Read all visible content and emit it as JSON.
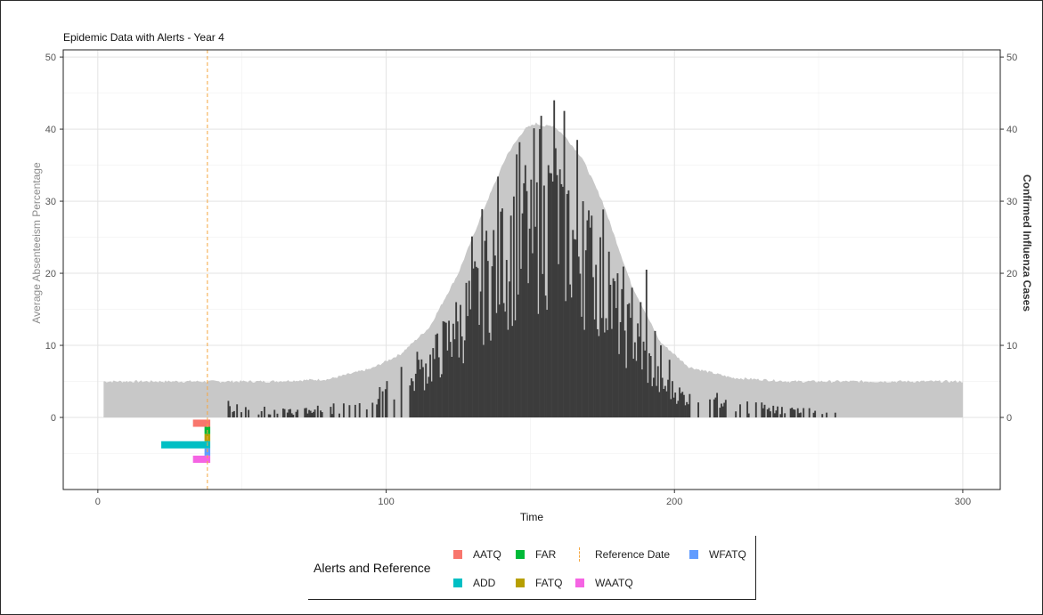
{
  "chart_data": {
    "type": "bar",
    "title": "Epidemic Data with Alerts - Year 4",
    "xlabel": "Time",
    "ylabel": "Average Absenteeism Percentage",
    "y2label": "Confirmed Influenza Cases",
    "xlim": [
      -12,
      313
    ],
    "ylim": [
      -10,
      51
    ],
    "x_ticks": [
      0,
      100,
      200,
      300
    ],
    "y_ticks": [
      0,
      10,
      20,
      30,
      40,
      50
    ],
    "y2_ticks": [
      0,
      10,
      20,
      30,
      40,
      50
    ],
    "grid": true,
    "reference_date": 38,
    "absenteeism": {
      "x_range": [
        2,
        300
      ],
      "profile": [
        [
          2,
          5.0
        ],
        [
          60,
          5.0
        ],
        [
          80,
          5.3
        ],
        [
          95,
          6.8
        ],
        [
          105,
          8.8
        ],
        [
          115,
          12.5
        ],
        [
          125,
          20.0
        ],
        [
          135,
          30.0
        ],
        [
          142,
          36.5
        ],
        [
          148,
          40.0
        ],
        [
          152,
          40.8
        ],
        [
          155,
          40.4
        ],
        [
          158,
          40.5
        ],
        [
          162,
          39.0
        ],
        [
          168,
          36.0
        ],
        [
          175,
          30.0
        ],
        [
          185,
          18.5
        ],
        [
          195,
          10.5
        ],
        [
          205,
          7.0
        ],
        [
          220,
          5.5
        ],
        [
          240,
          5.0
        ],
        [
          300,
          5.0
        ]
      ]
    },
    "cases": {
      "x_range": [
        45,
        256
      ],
      "envelope": [
        [
          45,
          1.5
        ],
        [
          60,
          0.8
        ],
        [
          80,
          1.0
        ],
        [
          95,
          2.0
        ],
        [
          105,
          4.0
        ],
        [
          115,
          9.0
        ],
        [
          125,
          15.0
        ],
        [
          135,
          23.0
        ],
        [
          145,
          28.0
        ],
        [
          152,
          30.0
        ],
        [
          158,
          34.0
        ],
        [
          165,
          29.0
        ],
        [
          172,
          24.0
        ],
        [
          180,
          17.0
        ],
        [
          188,
          11.0
        ],
        [
          195,
          5.5
        ],
        [
          205,
          3.0
        ],
        [
          220,
          1.5
        ],
        [
          240,
          1.0
        ],
        [
          256,
          0.6
        ]
      ],
      "spikes": [
        [
          158,
          44
        ],
        [
          161,
          32
        ],
        [
          166,
          38.5
        ],
        [
          153,
          40
        ],
        [
          148,
          35
        ],
        [
          145,
          36.5
        ],
        [
          156,
          35
        ],
        [
          150,
          33
        ],
        [
          140,
          29
        ],
        [
          143,
          28
        ],
        [
          137,
          26
        ],
        [
          163,
          31.5
        ],
        [
          168,
          30
        ],
        [
          171,
          28
        ],
        [
          174,
          25
        ],
        [
          177,
          23
        ],
        [
          180,
          20
        ],
        [
          134,
          24.5
        ],
        [
          185,
          18
        ],
        [
          188,
          16
        ],
        [
          190,
          20.5
        ],
        [
          129,
          15
        ],
        [
          123,
          13
        ],
        [
          117,
          11.5
        ],
        [
          111,
          8
        ],
        [
          195,
          10
        ],
        [
          198,
          8
        ],
        [
          193,
          12
        ]
      ]
    },
    "alerts": [
      {
        "name": "AATQ",
        "color": "#F8766D",
        "start": 33,
        "end": 39,
        "row": 0
      },
      {
        "name": "FAR",
        "color": "#00BA38",
        "start": 37,
        "end": 39,
        "row": 1
      },
      {
        "name": "FATQ",
        "color": "#B79F00",
        "start": 37,
        "end": 39,
        "row": 2
      },
      {
        "name": "ADD",
        "color": "#00BFC4",
        "start": 22,
        "end": 39,
        "row": 3
      },
      {
        "name": "WFATQ",
        "color": "#619CFF",
        "start": 37,
        "end": 39,
        "row": 4
      },
      {
        "name": "WAATQ",
        "color": "#F564E3",
        "start": 33,
        "end": 39,
        "row": 5
      }
    ]
  },
  "legend": {
    "title": "Alerts and Reference",
    "items": [
      {
        "label": "AATQ",
        "color": "#F8766D"
      },
      {
        "label": "FAR",
        "color": "#00BA38"
      },
      {
        "label": "Reference Date",
        "color": "#F5A742"
      },
      {
        "label": "WFATQ",
        "color": "#619CFF"
      },
      {
        "label": "ADD",
        "color": "#00BFC4"
      },
      {
        "label": "FATQ",
        "color": "#B79F00"
      },
      {
        "label": "WAATQ",
        "color": "#F564E3"
      }
    ]
  }
}
